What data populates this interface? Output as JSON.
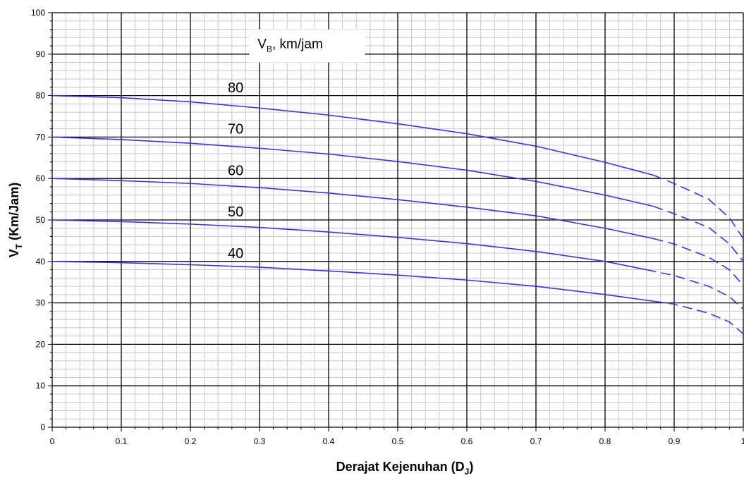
{
  "chart_data": {
    "type": "line",
    "title": "",
    "xlabel": {
      "main": "Derajat Kejenuhan (D",
      "sub": "J",
      "close": ")"
    },
    "ylabel": {
      "main": "V",
      "sub": "T",
      "rest": " (Km/Jam)"
    },
    "legend_title": {
      "main": "V",
      "sub": "B",
      "rest": ", km/jam"
    },
    "xlim": [
      0,
      1.0
    ],
    "ylim": [
      0,
      100
    ],
    "x_ticks": [
      0,
      0.1,
      0.2,
      0.3,
      0.4,
      0.5,
      0.6,
      0.7,
      0.8,
      0.9,
      1.0
    ],
    "x_tick_labels": [
      "0",
      "0.1",
      "0.2",
      "0.3",
      "0.4",
      "0.5",
      "0.6",
      "0.7",
      "0.8",
      "0.9",
      "1"
    ],
    "y_ticks": [
      0,
      10,
      20,
      30,
      40,
      50,
      60,
      70,
      80,
      90,
      100
    ],
    "y_tick_labels": [
      "0",
      "10",
      "20",
      "30",
      "40",
      "50",
      "60",
      "70",
      "80",
      "90",
      "100"
    ],
    "grid": {
      "major": true,
      "minor": true
    },
    "line_color": "#3333ff",
    "series": [
      {
        "name": "80",
        "solid": [
          [
            0,
            80
          ],
          [
            0.1,
            79.5
          ],
          [
            0.2,
            78.5
          ],
          [
            0.3,
            77
          ],
          [
            0.4,
            75.3
          ],
          [
            0.5,
            73.2
          ],
          [
            0.6,
            70.8
          ],
          [
            0.7,
            67.8
          ],
          [
            0.8,
            63.9
          ],
          [
            0.87,
            60.8
          ]
        ],
        "dashed": [
          [
            0.87,
            60.8
          ],
          [
            0.9,
            58.8
          ],
          [
            0.95,
            55
          ],
          [
            0.98,
            50.5
          ],
          [
            1.0,
            45.5
          ]
        ]
      },
      {
        "name": "70",
        "solid": [
          [
            0,
            70
          ],
          [
            0.1,
            69.4
          ],
          [
            0.2,
            68.5
          ],
          [
            0.3,
            67.3
          ],
          [
            0.4,
            65.9
          ],
          [
            0.5,
            64.1
          ],
          [
            0.6,
            62
          ],
          [
            0.7,
            59.3
          ],
          [
            0.8,
            56
          ],
          [
            0.87,
            53.3
          ]
        ],
        "dashed": [
          [
            0.87,
            53.3
          ],
          [
            0.9,
            51.5
          ],
          [
            0.95,
            48.2
          ],
          [
            0.98,
            44.2
          ],
          [
            1.0,
            40
          ]
        ]
      },
      {
        "name": "60",
        "solid": [
          [
            0,
            60
          ],
          [
            0.1,
            59.5
          ],
          [
            0.2,
            58.8
          ],
          [
            0.3,
            57.8
          ],
          [
            0.4,
            56.5
          ],
          [
            0.5,
            54.9
          ],
          [
            0.6,
            53.1
          ],
          [
            0.7,
            51
          ],
          [
            0.8,
            48
          ],
          [
            0.87,
            45.5
          ]
        ],
        "dashed": [
          [
            0.87,
            45.5
          ],
          [
            0.9,
            44.2
          ],
          [
            0.95,
            41
          ],
          [
            0.98,
            38
          ],
          [
            1.0,
            34.2
          ]
        ]
      },
      {
        "name": "50",
        "solid": [
          [
            0,
            50
          ],
          [
            0.1,
            49.6
          ],
          [
            0.2,
            49
          ],
          [
            0.3,
            48.2
          ],
          [
            0.4,
            47.1
          ],
          [
            0.5,
            45.8
          ],
          [
            0.6,
            44.3
          ],
          [
            0.7,
            42.4
          ],
          [
            0.8,
            40
          ],
          [
            0.86,
            38
          ]
        ],
        "dashed": [
          [
            0.86,
            38
          ],
          [
            0.9,
            36.6
          ],
          [
            0.95,
            34
          ],
          [
            0.98,
            31.5
          ],
          [
            1.0,
            28.5
          ]
        ]
      },
      {
        "name": "40",
        "solid": [
          [
            0,
            40
          ],
          [
            0.1,
            39.7
          ],
          [
            0.2,
            39.2
          ],
          [
            0.3,
            38.6
          ],
          [
            0.4,
            37.7
          ],
          [
            0.5,
            36.7
          ],
          [
            0.6,
            35.5
          ],
          [
            0.7,
            34
          ],
          [
            0.8,
            32
          ],
          [
            0.87,
            30.4
          ]
        ],
        "dashed": [
          [
            0.87,
            30.4
          ],
          [
            0.9,
            29.7
          ],
          [
            0.95,
            27.5
          ],
          [
            0.98,
            25.4
          ],
          [
            1.0,
            22.5
          ]
        ]
      }
    ],
    "curve_labels": [
      {
        "text": "80",
        "x": 0.25,
        "y": 82
      },
      {
        "text": "70",
        "x": 0.25,
        "y": 72
      },
      {
        "text": "60",
        "x": 0.25,
        "y": 62
      },
      {
        "text": "50",
        "x": 0.25,
        "y": 52
      },
      {
        "text": "40",
        "x": 0.25,
        "y": 42
      }
    ]
  }
}
